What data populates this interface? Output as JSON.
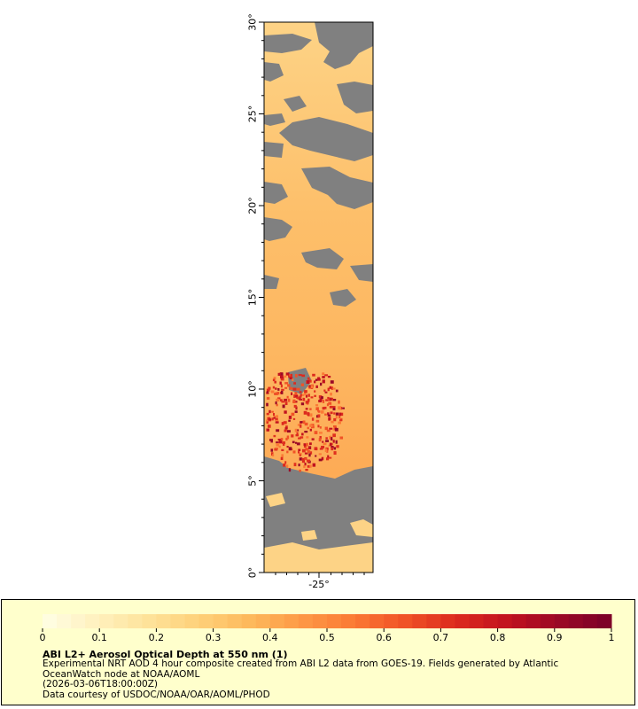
{
  "map": {
    "lat_labels": [
      "0°",
      "5°",
      "10°",
      "15°",
      "20°",
      "25°",
      "30°"
    ],
    "lon_labels": [
      "-25°"
    ],
    "missing_color": "#808080",
    "lat_range": [
      0,
      30
    ]
  },
  "colorbar": {
    "ticks": [
      "0",
      "0.1",
      "0.2",
      "0.3",
      "0.4",
      "0.5",
      "0.6",
      "0.7",
      "0.8",
      "0.9",
      "1"
    ],
    "range": [
      0,
      1
    ],
    "colors": [
      "#ffffe5",
      "#fff1c0",
      "#fee39b",
      "#fed17a",
      "#fdb95c",
      "#fd9946",
      "#fb7a35",
      "#f05226",
      "#dc2a1e",
      "#c1121f",
      "#9a0826",
      "#7a0028"
    ]
  },
  "info": {
    "title": "ABI L2+ Aerosol Optical Depth at 550 nm (1)",
    "line1": "Experimental NRT AOD 4 hour composite created from ABI L2 data from GOES-19. Fields generated by Atlantic",
    "line2": "OceanWatch node at NOAA/AOML",
    "line3": "(2026-03-06T18:00:00Z)",
    "line4": "Data courtesy of USDOC/NOAA/OAR/AOML/PHOD"
  }
}
